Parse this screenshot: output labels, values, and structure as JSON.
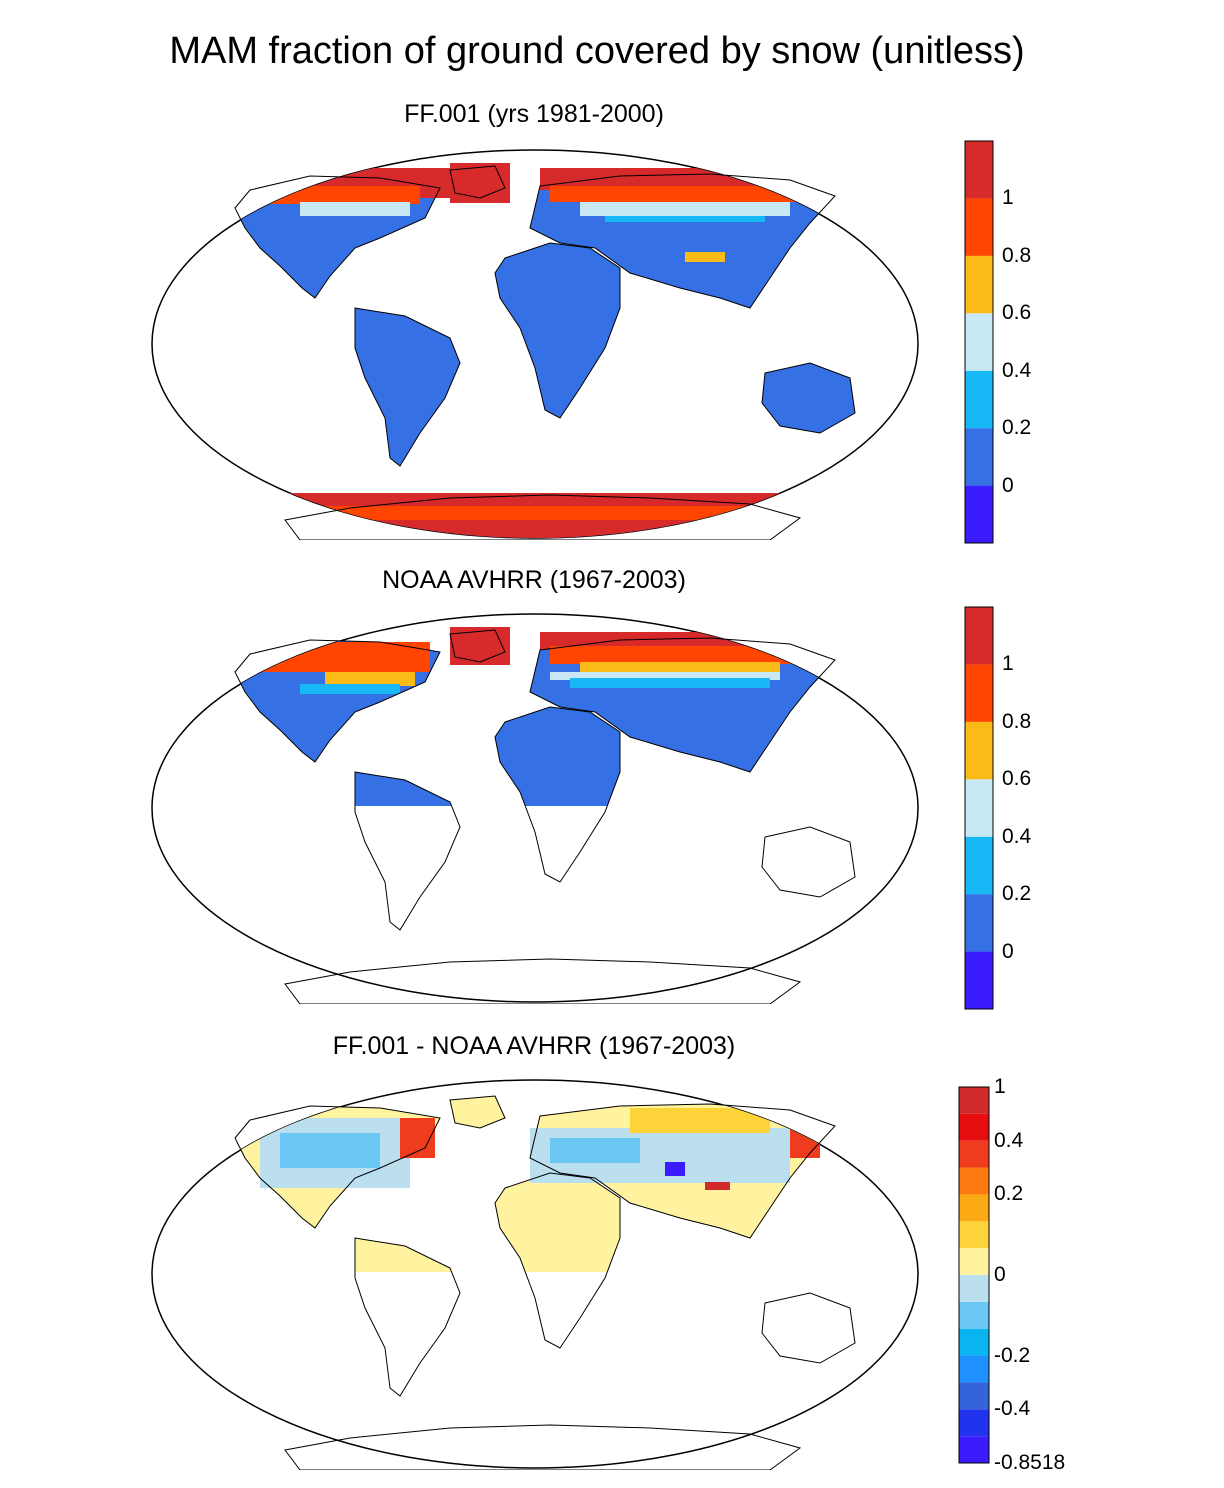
{
  "main_title": "MAM fraction of ground covered by snow (unitless)",
  "panels": [
    {
      "title": "FF.001 (yrs 1981-2000)",
      "colorbar": {
        "colors": [
          "#3a1cff",
          "#3570e5",
          "#16b9f5",
          "#c9e8f5",
          "#fbbb16",
          "#ff4500",
          "#d72a2a"
        ],
        "labels": [
          "0",
          "0.2",
          "0.4",
          "0.6",
          "0.8",
          "1"
        ]
      }
    },
    {
      "title": "NOAA AVHRR (1967-2003)",
      "colorbar": {
        "colors": [
          "#3a1cff",
          "#3570e5",
          "#16b9f5",
          "#c9e8f5",
          "#fbbb16",
          "#ff4500",
          "#d72a2a"
        ],
        "labels": [
          "0",
          "0.2",
          "0.4",
          "0.6",
          "0.8",
          "1"
        ]
      }
    },
    {
      "title": "FF.001 - NOAA AVHRR (1967-2003)",
      "colorbar": {
        "colors": [
          "#3a1cff",
          "#2233ee",
          "#3563da",
          "#1e90ff",
          "#0ab4f0",
          "#6bc7f3",
          "#bcdff0",
          "#fff3a0",
          "#fcd339",
          "#fbaa14",
          "#ff7a10",
          "#f03c1e",
          "#e60e0e",
          "#d22a2a"
        ],
        "labels": [
          "-0.8518",
          "-0.4",
          "-0.2",
          "0",
          "0.2",
          "0.4",
          "1"
        ]
      }
    }
  ]
}
